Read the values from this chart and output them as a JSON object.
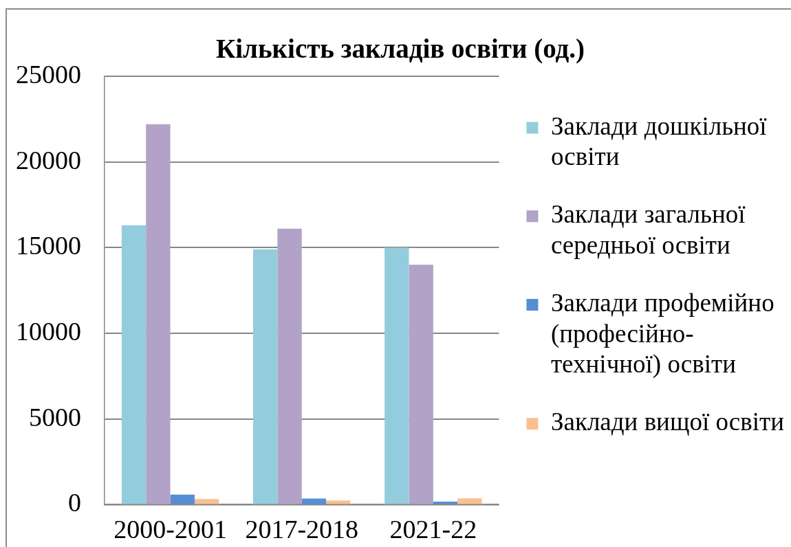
{
  "chart_data": {
    "type": "bar",
    "title": "Кількість закладів освіти (од.)",
    "categories": [
      "2000-2001",
      "2017-2018",
      "2021-22"
    ],
    "series": [
      {
        "name": "Заклади дошкільної освіти",
        "color": "#93cddd",
        "values": [
          16300,
          14900,
          15000
        ]
      },
      {
        "name": "Заклади загальної середньої освіти",
        "color": "#b3a2c7",
        "values": [
          22200,
          16100,
          14000
        ]
      },
      {
        "name": "Заклади профемійно (професійно-технічної) освіти",
        "color": "#558ed5",
        "values": [
          590,
          360,
          180
        ]
      },
      {
        "name": "Заклади вищої освіти",
        "color": "#fac090",
        "values": [
          330,
          250,
          370
        ]
      }
    ],
    "ylim": [
      0,
      25000
    ],
    "yticks": [
      0,
      5000,
      10000,
      15000,
      20000,
      25000
    ],
    "grid": "y",
    "legend": "right"
  }
}
